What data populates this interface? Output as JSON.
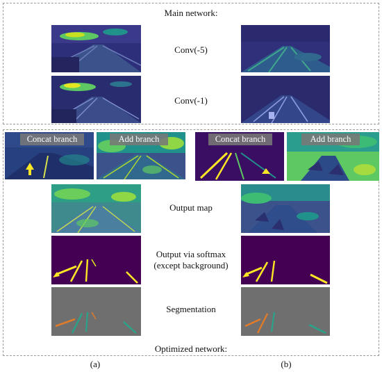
{
  "figure": {
    "top_title": "Main network:",
    "bottom_title": "Optimized network:",
    "rows": {
      "conv5": "Conv(-5)",
      "conv1": "Conv(-1)",
      "output_map": "Output map",
      "softmax_line1": "Output via softmax",
      "softmax_line2": "(except background)",
      "segmentation": "Segmentation"
    },
    "branches": {
      "concat": "Concat branch",
      "add": "Add branch"
    },
    "columns": {
      "a": "(a)",
      "b": "(b)"
    }
  },
  "colors": {
    "viridis_dark": "#440154",
    "viridis_blue": "#3b528b",
    "viridis_teal": "#21918c",
    "viridis_green": "#5ec962",
    "viridis_yellow": "#fde725",
    "seg_gray": "#6f6f6f",
    "seg_orange": "#e07b2a",
    "seg_green": "#2aa38a"
  }
}
